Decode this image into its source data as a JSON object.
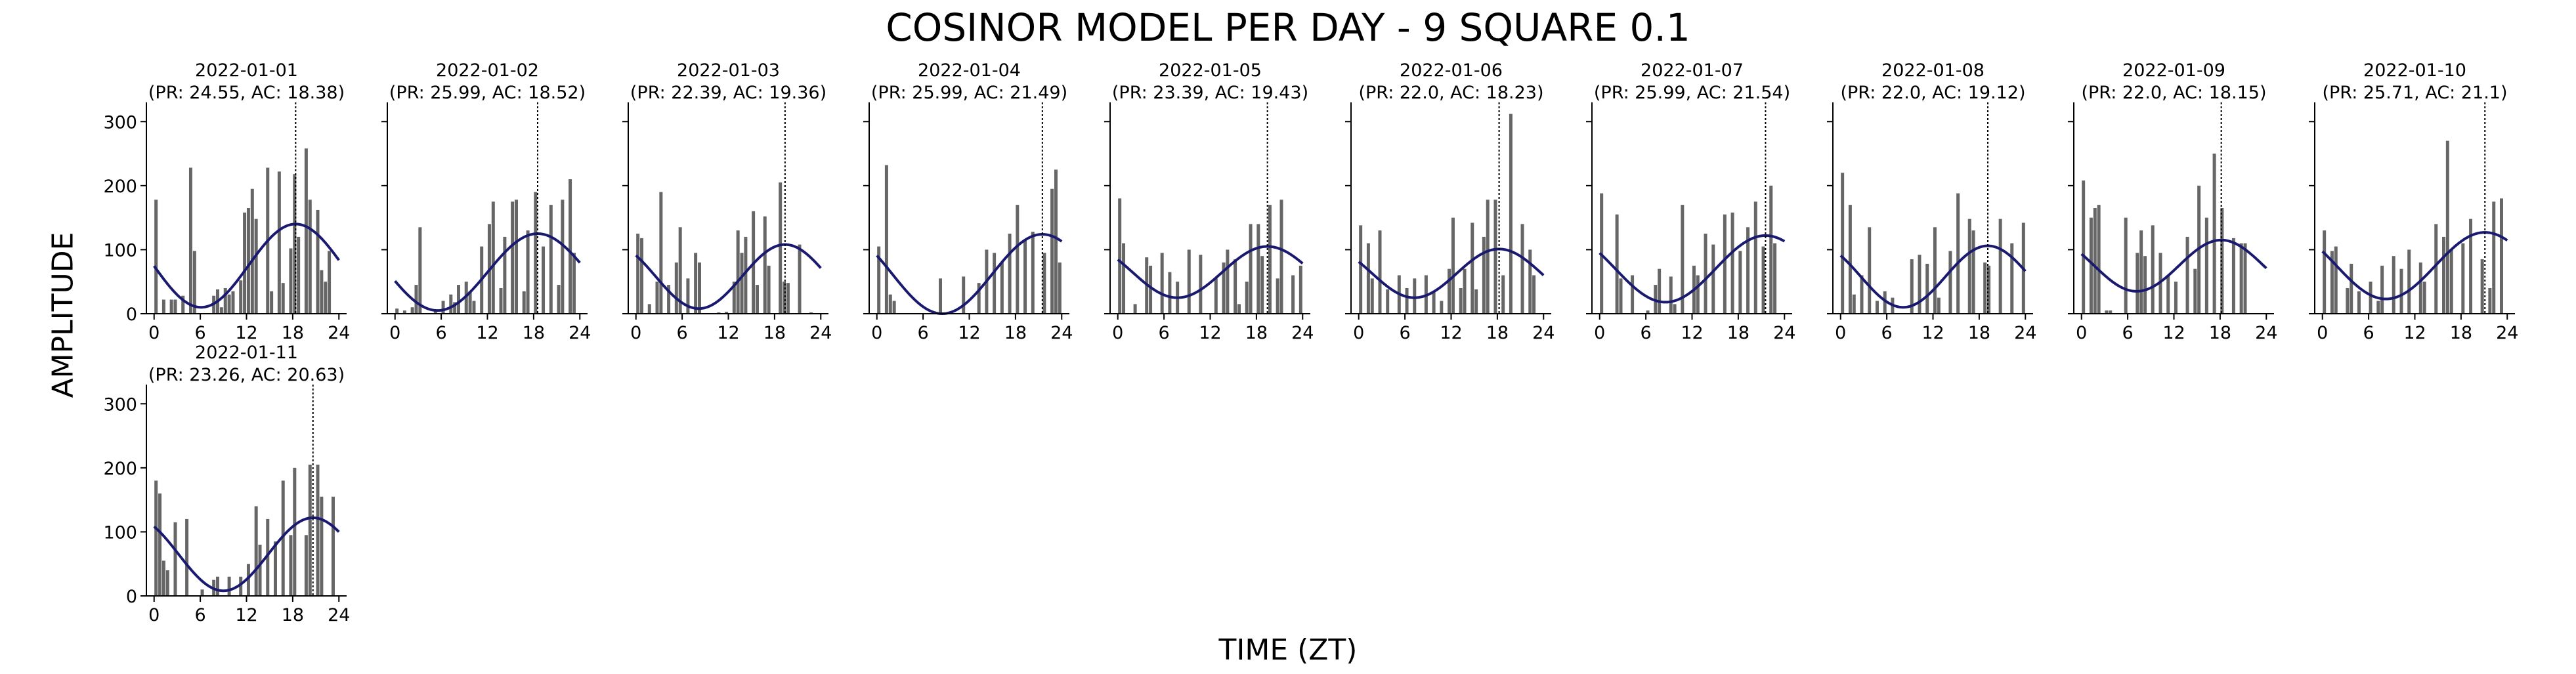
{
  "figure": {
    "title": "COSINOR MODEL PER DAY - 9 SQUARE 0.1",
    "xlabel": "TIME (ZT)",
    "ylabel": "AMPLITUDE"
  },
  "colors": {
    "bar": "#666666",
    "curve": "#191970",
    "acrophase_line": "#000000"
  },
  "chart_data": [
    {
      "type": "bar",
      "title": "2022-01-01\n(PR: 24.55, AC: 18.38)",
      "ylim": [
        0,
        330
      ],
      "xlim": [
        -1,
        25
      ],
      "xticks": [
        0,
        6,
        12,
        18,
        24
      ],
      "yticks": [
        0,
        100,
        200,
        300
      ],
      "acrophase": 18.38,
      "period": 24.55,
      "cosinor": {
        "mesor": 75,
        "amplitude": 65
      },
      "x": [
        0,
        0.5,
        1,
        1.5,
        2,
        2.5,
        3,
        3.5,
        4,
        4.5,
        5,
        5.5,
        6,
        6.5,
        7,
        7.5,
        8,
        8.5,
        9,
        9.5,
        10,
        10.5,
        11,
        11.5,
        12,
        12.5,
        13,
        13.5,
        14,
        14.5,
        15,
        15.5,
        16,
        16.5,
        17,
        17.5,
        18,
        18.5,
        19,
        19.5,
        20,
        20.5,
        21,
        21.5,
        22,
        22.5,
        23,
        23.5
      ],
      "values": [
        178,
        0,
        22,
        0,
        22,
        22,
        0,
        28,
        0,
        228,
        98,
        0,
        0,
        0,
        0,
        28,
        38,
        10,
        40,
        30,
        35,
        0,
        52,
        158,
        165,
        195,
        148,
        0,
        0,
        228,
        35,
        0,
        222,
        48,
        0,
        102,
        218,
        120,
        0,
        258,
        178,
        0,
        162,
        68,
        50,
        98,
        0,
        0
      ]
    },
    {
      "type": "bar",
      "title": "2022-01-02\n(PR: 25.99, AC: 18.52)",
      "ylim": [
        0,
        330
      ],
      "xlim": [
        -1,
        25
      ],
      "xticks": [
        0,
        6,
        12,
        18,
        24
      ],
      "yticks": [
        0,
        100,
        200,
        300
      ],
      "acrophase": 18.52,
      "period": 25.99,
      "cosinor": {
        "mesor": 65,
        "amplitude": 60
      },
      "x": [
        0,
        0.5,
        1,
        1.5,
        2,
        2.5,
        3,
        3.5,
        4,
        4.5,
        5,
        5.5,
        6,
        6.5,
        7,
        7.5,
        8,
        8.5,
        9,
        9.5,
        10,
        10.5,
        11,
        11.5,
        12,
        12.5,
        13,
        13.5,
        14,
        14.5,
        15,
        15.5,
        16,
        16.5,
        17,
        17.5,
        18,
        18.5,
        19,
        19.5,
        20,
        20.5,
        21,
        21.5,
        22,
        22.5,
        23,
        23.5
      ],
      "values": [
        8,
        0,
        5,
        0,
        10,
        45,
        135,
        0,
        0,
        0,
        5,
        0,
        20,
        0,
        30,
        18,
        45,
        0,
        50,
        35,
        20,
        0,
        105,
        0,
        140,
        175,
        0,
        40,
        120,
        0,
        175,
        178,
        0,
        35,
        130,
        0,
        190,
        0,
        105,
        0,
        170,
        0,
        45,
        178,
        0,
        210,
        95,
        0
      ]
    },
    {
      "type": "bar",
      "title": "2022-01-03\n(PR: 22.39, AC: 19.36)",
      "ylim": [
        0,
        330
      ],
      "xlim": [
        -1,
        25
      ],
      "xticks": [
        0,
        6,
        12,
        18,
        24
      ],
      "yticks": [
        0,
        100,
        200,
        300
      ],
      "acrophase": 19.36,
      "period": 22.39,
      "cosinor": {
        "mesor": 58,
        "amplitude": 50
      },
      "x": [
        0,
        0.5,
        1,
        1.5,
        2,
        2.5,
        3,
        3.5,
        4,
        4.5,
        5,
        5.5,
        6,
        6.5,
        7,
        7.5,
        8,
        8.5,
        9,
        9.5,
        10,
        10.5,
        11,
        11.5,
        12,
        12.5,
        13,
        13.5,
        14,
        14.5,
        15,
        15.5,
        16,
        16.5,
        17,
        17.5,
        18,
        18.5,
        19,
        19.5,
        20,
        20.5,
        21,
        21.5,
        22,
        22.5,
        23,
        23.5
      ],
      "values": [
        125,
        118,
        0,
        15,
        0,
        50,
        190,
        0,
        45,
        0,
        80,
        135,
        0,
        55,
        0,
        95,
        80,
        0,
        0,
        0,
        0,
        2,
        0,
        3,
        0,
        50,
        130,
        95,
        120,
        0,
        160,
        45,
        0,
        152,
        75,
        0,
        0,
        205,
        50,
        48,
        0,
        0,
        108,
        0,
        0,
        2,
        0,
        0
      ]
    },
    {
      "type": "bar",
      "title": "2022-01-04\n(PR: 25.99, AC: 21.49)",
      "ylim": [
        0,
        330
      ],
      "xlim": [
        -1,
        25
      ],
      "xticks": [
        0,
        6,
        12,
        18,
        24
      ],
      "yticks": [
        0,
        100,
        200,
        300
      ],
      "acrophase": 21.49,
      "period": 25.99,
      "cosinor": {
        "mesor": 62,
        "amplitude": 62
      },
      "x": [
        0,
        0.5,
        1,
        1.5,
        2,
        2.5,
        3,
        3.5,
        4,
        4.5,
        5,
        5.5,
        6,
        6.5,
        7,
        7.5,
        8,
        8.5,
        9,
        9.5,
        10,
        10.5,
        11,
        11.5,
        12,
        12.5,
        13,
        13.5,
        14,
        14.5,
        15,
        15.5,
        16,
        16.5,
        17,
        17.5,
        18,
        18.5,
        19,
        19.5,
        20,
        20.5,
        21,
        21.5,
        22,
        22.5,
        23,
        23.5
      ],
      "values": [
        105,
        0,
        232,
        30,
        20,
        0,
        0,
        0,
        0,
        0,
        0,
        0,
        0,
        0,
        0,
        0,
        55,
        2,
        0,
        0,
        0,
        0,
        58,
        0,
        0,
        0,
        48,
        0,
        100,
        0,
        95,
        0,
        80,
        0,
        125,
        0,
        170,
        0,
        115,
        0,
        128,
        0,
        0,
        95,
        0,
        195,
        225,
        80
      ]
    },
    {
      "type": "bar",
      "title": "2022-01-05\n(PR: 23.39, AC: 19.43)",
      "ylim": [
        0,
        330
      ],
      "xlim": [
        -1,
        25
      ],
      "xticks": [
        0,
        6,
        12,
        18,
        24
      ],
      "yticks": [
        0,
        100,
        200,
        300
      ],
      "acrophase": 19.43,
      "period": 23.39,
      "cosinor": {
        "mesor": 65,
        "amplitude": 40
      },
      "x": [
        0,
        0.5,
        1,
        1.5,
        2,
        2.5,
        3,
        3.5,
        4,
        4.5,
        5,
        5.5,
        6,
        6.5,
        7,
        7.5,
        8,
        8.5,
        9,
        9.5,
        10,
        10.5,
        11,
        11.5,
        12,
        12.5,
        13,
        13.5,
        14,
        14.5,
        15,
        15.5,
        16,
        16.5,
        17,
        17.5,
        18,
        18.5,
        19,
        19.5,
        20,
        20.5,
        21,
        21.5,
        22,
        22.5,
        23,
        23.5
      ],
      "values": [
        180,
        110,
        0,
        0,
        15,
        0,
        0,
        88,
        75,
        0,
        0,
        95,
        0,
        65,
        0,
        50,
        0,
        0,
        100,
        0,
        0,
        92,
        0,
        0,
        0,
        55,
        0,
        80,
        100,
        0,
        85,
        15,
        0,
        50,
        140,
        0,
        140,
        90,
        0,
        170,
        0,
        55,
        178,
        0,
        0,
        60,
        0,
        75
      ]
    },
    {
      "type": "bar",
      "title": "2022-01-06\n(PR: 22.0, AC: 18.23)",
      "ylim": [
        0,
        330
      ],
      "xlim": [
        -1,
        25
      ],
      "xticks": [
        0,
        6,
        12,
        18,
        24
      ],
      "yticks": [
        0,
        100,
        200,
        300
      ],
      "acrophase": 18.23,
      "period": 22.0,
      "cosinor": {
        "mesor": 63,
        "amplitude": 38
      },
      "x": [
        0,
        0.5,
        1,
        1.5,
        2,
        2.5,
        3,
        3.5,
        4,
        4.5,
        5,
        5.5,
        6,
        6.5,
        7,
        7.5,
        8,
        8.5,
        9,
        9.5,
        10,
        10.5,
        11,
        11.5,
        12,
        12.5,
        13,
        13.5,
        14,
        14.5,
        15,
        15.5,
        16,
        16.5,
        17,
        17.5,
        18,
        18.5,
        19,
        19.5,
        20,
        20.5,
        21,
        21.5,
        22,
        22.5,
        23,
        23.5
      ],
      "values": [
        138,
        0,
        110,
        55,
        0,
        130,
        0,
        38,
        0,
        0,
        60,
        0,
        40,
        0,
        55,
        0,
        0,
        60,
        0,
        35,
        0,
        20,
        0,
        70,
        150,
        0,
        40,
        70,
        0,
        142,
        38,
        0,
        120,
        178,
        0,
        178,
        0,
        60,
        0,
        312,
        0,
        0,
        140,
        0,
        100,
        60,
        0,
        0
      ]
    },
    {
      "type": "bar",
      "title": "2022-01-07\n(PR: 25.99, AC: 21.54)",
      "ylim": [
        0,
        330
      ],
      "xlim": [
        -1,
        25
      ],
      "xticks": [
        0,
        6,
        12,
        18,
        24
      ],
      "yticks": [
        0,
        100,
        200,
        300
      ],
      "acrophase": 21.54,
      "period": 25.99,
      "cosinor": {
        "mesor": 70,
        "amplitude": 52
      },
      "x": [
        0,
        0.5,
        1,
        1.5,
        2,
        2.5,
        3,
        3.5,
        4,
        4.5,
        5,
        5.5,
        6,
        6.5,
        7,
        7.5,
        8,
        8.5,
        9,
        9.5,
        10,
        10.5,
        11,
        11.5,
        12,
        12.5,
        13,
        13.5,
        14,
        14.5,
        15,
        15.5,
        16,
        16.5,
        17,
        17.5,
        18,
        18.5,
        19,
        19.5,
        20,
        20.5,
        21,
        21.5,
        22,
        22.5,
        23,
        23.5
      ],
      "values": [
        188,
        0,
        0,
        0,
        155,
        55,
        0,
        0,
        60,
        0,
        0,
        0,
        5,
        0,
        45,
        70,
        0,
        0,
        58,
        15,
        0,
        170,
        0,
        0,
        75,
        60,
        0,
        125,
        0,
        108,
        0,
        0,
        155,
        0,
        158,
        0,
        98,
        0,
        135,
        0,
        175,
        0,
        105,
        0,
        200,
        110,
        0,
        0
      ]
    },
    {
      "type": "bar",
      "title": "2022-01-08\n(PR: 22.0, AC: 19.12)",
      "ylim": [
        0,
        330
      ],
      "xlim": [
        -1,
        25
      ],
      "xticks": [
        0,
        6,
        12,
        18,
        24
      ],
      "yticks": [
        0,
        100,
        200,
        300
      ],
      "acrophase": 19.12,
      "period": 22.0,
      "cosinor": {
        "mesor": 58,
        "amplitude": 48
      },
      "x": [
        0,
        0.5,
        1,
        1.5,
        2,
        2.5,
        3,
        3.5,
        4,
        4.5,
        5,
        5.5,
        6,
        6.5,
        7,
        7.5,
        8,
        8.5,
        9,
        9.5,
        10,
        10.5,
        11,
        11.5,
        12,
        12.5,
        13,
        13.5,
        14,
        14.5,
        15,
        15.5,
        16,
        16.5,
        17,
        17.5,
        18,
        18.5,
        19,
        19.5,
        20,
        20.5,
        21,
        21.5,
        22,
        22.5,
        23,
        23.5
      ],
      "values": [
        220,
        0,
        170,
        30,
        0,
        60,
        0,
        135,
        0,
        20,
        0,
        35,
        0,
        25,
        0,
        0,
        0,
        0,
        85,
        0,
        92,
        0,
        78,
        0,
        135,
        25,
        0,
        0,
        98,
        0,
        188,
        0,
        0,
        148,
        130,
        0,
        0,
        80,
        75,
        0,
        0,
        148,
        0,
        0,
        110,
        0,
        0,
        142
      ]
    },
    {
      "type": "bar",
      "title": "2022-01-09\n(PR: 22.0, AC: 18.15)",
      "ylim": [
        0,
        330
      ],
      "xlim": [
        -1,
        25
      ],
      "xticks": [
        0,
        6,
        12,
        18,
        24
      ],
      "yticks": [
        0,
        100,
        200,
        300
      ],
      "acrophase": 18.15,
      "period": 22.0,
      "cosinor": {
        "mesor": 75,
        "amplitude": 40
      },
      "x": [
        0,
        0.5,
        1,
        1.5,
        2,
        2.5,
        3,
        3.5,
        4,
        4.5,
        5,
        5.5,
        6,
        6.5,
        7,
        7.5,
        8,
        8.5,
        9,
        9.5,
        10,
        10.5,
        11,
        11.5,
        12,
        12.5,
        13,
        13.5,
        14,
        14.5,
        15,
        15.5,
        16,
        16.5,
        17,
        17.5,
        18,
        18.5,
        19,
        19.5,
        20,
        20.5,
        21,
        21.5,
        22,
        22.5,
        23,
        23.5
      ],
      "values": [
        208,
        0,
        150,
        165,
        170,
        0,
        5,
        5,
        0,
        0,
        0,
        150,
        0,
        0,
        95,
        130,
        90,
        0,
        138,
        0,
        95,
        0,
        60,
        0,
        50,
        0,
        0,
        120,
        0,
        70,
        200,
        0,
        150,
        0,
        250,
        0,
        165,
        0,
        0,
        118,
        0,
        110,
        110,
        0,
        0,
        0,
        0,
        0
      ]
    },
    {
      "type": "bar",
      "title": "2022-01-10\n(PR: 25.71, AC: 21.1)",
      "ylim": [
        0,
        330
      ],
      "xlim": [
        -1,
        25
      ],
      "xticks": [
        0,
        6,
        12,
        18,
        24
      ],
      "yticks": [
        0,
        100,
        200,
        300
      ],
      "acrophase": 21.1,
      "period": 25.71,
      "cosinor": {
        "mesor": 75,
        "amplitude": 52
      },
      "x": [
        0,
        0.5,
        1,
        1.5,
        2,
        2.5,
        3,
        3.5,
        4,
        4.5,
        5,
        5.5,
        6,
        6.5,
        7,
        7.5,
        8,
        8.5,
        9,
        9.5,
        10,
        10.5,
        11,
        11.5,
        12,
        12.5,
        13,
        13.5,
        14,
        14.5,
        15,
        15.5,
        16,
        16.5,
        17,
        17.5,
        18,
        18.5,
        19,
        19.5,
        20,
        20.5,
        21,
        21.5,
        22,
        22.5,
        23,
        23.5
      ],
      "values": [
        130,
        0,
        98,
        105,
        0,
        0,
        40,
        78,
        0,
        35,
        0,
        0,
        50,
        0,
        20,
        75,
        0,
        0,
        90,
        0,
        70,
        0,
        100,
        0,
        0,
        80,
        50,
        0,
        0,
        140,
        0,
        120,
        270,
        100,
        0,
        0,
        110,
        0,
        148,
        0,
        0,
        85,
        0,
        40,
        175,
        0,
        180,
        0
      ]
    },
    {
      "type": "bar",
      "title": "2022-01-11\n(PR: 23.26, AC: 20.63)",
      "ylim": [
        0,
        330
      ],
      "xlim": [
        -1,
        25
      ],
      "xticks": [
        0,
        6,
        12,
        18,
        24
      ],
      "yticks": [
        0,
        100,
        200,
        300
      ],
      "acrophase": 20.63,
      "period": 23.26,
      "cosinor": {
        "mesor": 65,
        "amplitude": 57
      },
      "x": [
        0,
        0.5,
        1,
        1.5,
        2,
        2.5,
        3,
        3.5,
        4,
        4.5,
        5,
        5.5,
        6,
        6.5,
        7,
        7.5,
        8,
        8.5,
        9,
        9.5,
        10,
        10.5,
        11,
        11.5,
        12,
        12.5,
        13,
        13.5,
        14,
        14.5,
        15,
        15.5,
        16,
        16.5,
        17,
        17.5,
        18,
        18.5,
        19,
        19.5,
        20,
        20.5,
        21,
        21.5,
        22,
        22.5,
        23,
        23.5
      ],
      "values": [
        180,
        160,
        55,
        40,
        0,
        115,
        0,
        0,
        120,
        0,
        0,
        0,
        10,
        0,
        0,
        25,
        30,
        0,
        0,
        30,
        0,
        0,
        30,
        0,
        50,
        0,
        140,
        80,
        0,
        120,
        0,
        85,
        0,
        180,
        0,
        95,
        200,
        0,
        0,
        95,
        205,
        0,
        205,
        155,
        0,
        0,
        155,
        0
      ]
    }
  ]
}
